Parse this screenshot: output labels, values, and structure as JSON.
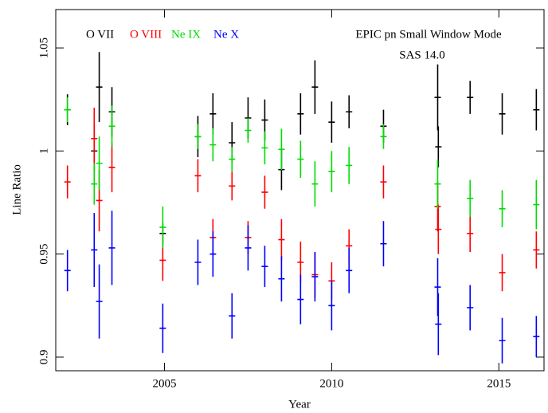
{
  "chart_data": {
    "type": "errorbar",
    "xlabel": "Year",
    "ylabel": "Line Ratio",
    "annotations": [
      "EPIC pn Small Window Mode",
      "SAS 14.0"
    ],
    "xlim": [
      2001.75,
      2016.35
    ],
    "xticks": [
      2005,
      2010,
      2015
    ],
    "ylim": [
      0.8934,
      1.0686
    ],
    "yticks": [
      0.9,
      0.95,
      1,
      1.05
    ],
    "x": [
      2002.1,
      2002.9,
      2003.05,
      2003.43,
      2004.95,
      2006.0,
      2006.45,
      2007.02,
      2007.5,
      2008.0,
      2008.5,
      2009.07,
      2009.5,
      2010.0,
      2010.52,
      2011.55,
      2013.17,
      2013.19,
      2014.14,
      2015.1,
      2016.12
    ],
    "series": [
      {
        "name": "O VII",
        "color": "#000000",
        "values": [
          1.02,
          1.0,
          1.031,
          1.019,
          0.96,
          1.007,
          1.018,
          1.004,
          1.016,
          1.015,
          0.991,
          1.018,
          1.031,
          1.014,
          1.019,
          1.012,
          1.026,
          1.002,
          1.026,
          1.018,
          1.02
        ],
        "errors": [
          0.0075,
          0.013,
          0.017,
          0.012,
          0.005,
          0.01,
          0.01,
          0.01,
          0.01,
          0.01,
          0.01,
          0.01,
          0.013,
          0.01,
          0.008,
          0.008,
          0.016,
          0.01,
          0.008,
          0.01,
          0.01
        ]
      },
      {
        "name": "O VIII",
        "color": "#ff0000",
        "values": [
          0.985,
          1.006,
          0.976,
          0.992,
          0.947,
          0.988,
          0.958,
          0.983,
          0.958,
          0.98,
          0.957,
          0.946,
          0.94,
          0.937,
          0.954,
          0.985,
          0.973,
          0.962,
          0.96,
          0.941,
          0.952
        ],
        "errors": [
          0.008,
          0.015,
          0.015,
          0.012,
          0.01,
          0.008,
          0.009,
          0.007,
          0.008,
          0.008,
          0.01,
          0.01,
          0.011,
          0.009,
          0.008,
          0.008,
          0.012,
          0.012,
          0.009,
          0.009,
          0.009
        ]
      },
      {
        "name": "Ne IX",
        "color": "#00dd00",
        "values": [
          1.02,
          0.984,
          0.994,
          1.012,
          0.963,
          1.007,
          1.003,
          0.996,
          1.01,
          1.0015,
          1.0008,
          0.996,
          0.984,
          0.99,
          0.993,
          1.007,
          0.984,
          null,
          0.977,
          0.972,
          0.974
        ],
        "errors": [
          0.006,
          0.01,
          0.013,
          0.01,
          0.01,
          0.006,
          0.008,
          0.006,
          0.006,
          0.008,
          0.01,
          0.009,
          0.011,
          0.01,
          0.009,
          0.006,
          0.012,
          null,
          0.009,
          0.009,
          0.012
        ]
      },
      {
        "name": "Ne X",
        "color": "#0000ff",
        "values": [
          0.942,
          0.952,
          0.927,
          0.953,
          0.914,
          0.946,
          0.95,
          0.92,
          0.953,
          0.944,
          0.938,
          0.928,
          0.939,
          0.925,
          0.942,
          0.955,
          0.934,
          0.916,
          0.924,
          0.908,
          0.91
        ],
        "errors": [
          0.01,
          0.018,
          0.018,
          0.018,
          0.012,
          0.011,
          0.011,
          0.011,
          0.011,
          0.01,
          0.011,
          0.012,
          0.012,
          0.012,
          0.011,
          0.011,
          0.014,
          0.015,
          0.011,
          0.011,
          0.01
        ]
      }
    ]
  }
}
